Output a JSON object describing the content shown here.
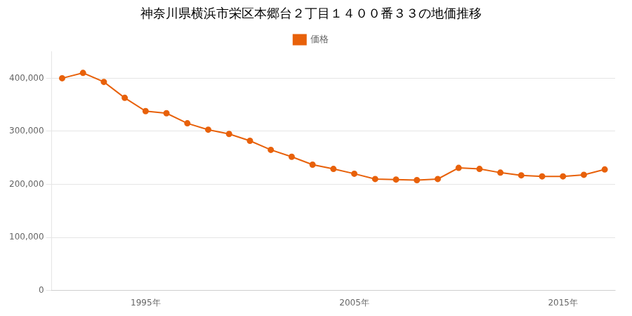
{
  "chart_data": {
    "type": "line",
    "title": "神奈川県横浜市栄区本郷台２丁目１４００番３３の地価推移",
    "x": [
      1991,
      1992,
      1993,
      1994,
      1995,
      1996,
      1997,
      1998,
      1999,
      2000,
      2001,
      2002,
      2003,
      2004,
      2005,
      2006,
      2007,
      2008,
      2009,
      2010,
      2011,
      2012,
      2013,
      2014,
      2015,
      2016,
      2017
    ],
    "series": [
      {
        "name": "価格",
        "color": "#e8610a",
        "marker": "circle",
        "values": [
          400000,
          410000,
          393000,
          363000,
          338000,
          334000,
          315000,
          303000,
          295000,
          282000,
          265000,
          252000,
          237000,
          229000,
          220000,
          210000,
          209000,
          208000,
          210000,
          231000,
          229000,
          222000,
          217000,
          215000,
          215000,
          218000,
          228000
        ]
      }
    ],
    "xlim": [
      1990.5,
      2017.5
    ],
    "xticks": [
      {
        "value": 1995,
        "label": "1995年"
      },
      {
        "value": 2005,
        "label": "2005年"
      },
      {
        "value": 2015,
        "label": "2015年"
      }
    ],
    "ylim": [
      0,
      450000
    ],
    "yticks": [
      0,
      {
        "value": 100000,
        "label": "100,000"
      },
      {
        "value": 200000,
        "label": "200,000"
      },
      {
        "value": 300000,
        "label": "300,000"
      },
      {
        "value": 400000,
        "label": "400,000"
      }
    ],
    "grid": "y",
    "legend": "top"
  }
}
